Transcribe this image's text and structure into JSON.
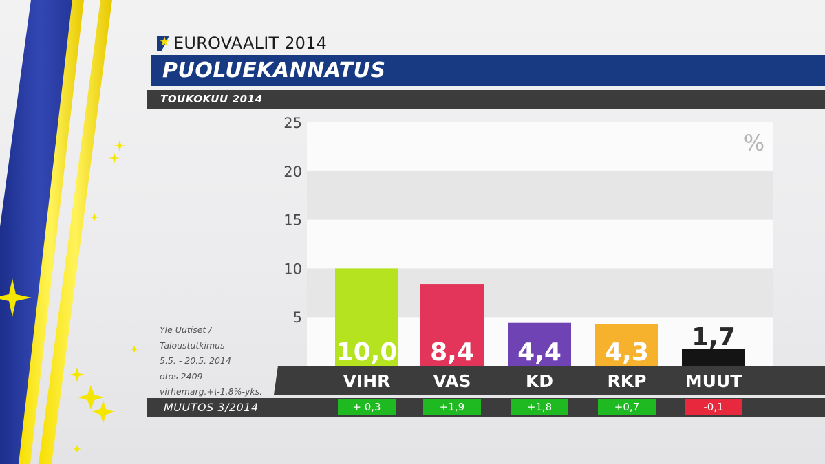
{
  "header": {
    "brand": "EUROVAALIT 2014",
    "title": "PUOLUEKANNATUS",
    "subtitle": "TOUKOKUU 2014"
  },
  "source_lines": [
    "Yle Uutiset /",
    "Taloustutkimus",
    "5.5. - 20.5. 2014",
    "otos 2409",
    "virhemarg.+\\-1,8%-yks."
  ],
  "changes": {
    "label": "MUUTOS 3/2014",
    "items": [
      {
        "party": "VIHR",
        "text": "+ 0,3",
        "value": 0.3
      },
      {
        "party": "VAS",
        "text": "+1,9",
        "value": 1.9
      },
      {
        "party": "KD",
        "text": "+1,8",
        "value": 1.8
      },
      {
        "party": "RKP",
        "text": "+0,7",
        "value": 0.7
      },
      {
        "party": "MUUT",
        "text": "-0,1",
        "value": -0.1
      }
    ]
  },
  "colors": {
    "title_bar": "#173a82",
    "dark_bar": "#3c3c3c",
    "positive_change": "#1fb921",
    "negative_change": "#e8283c"
  },
  "chart_data": {
    "type": "bar",
    "unit_label": "%",
    "categories": [
      "VIHR",
      "VAS",
      "KD",
      "RKP",
      "MUUT"
    ],
    "values": [
      10.0,
      8.4,
      4.4,
      4.3,
      1.7
    ],
    "value_labels": [
      "10,0",
      "8,4",
      "4,4",
      "4,3",
      "1,7"
    ],
    "colors": [
      "#b5e31f",
      "#e3345a",
      "#7043b5",
      "#f6b12d",
      "#141414"
    ],
    "ylim": [
      0,
      25
    ],
    "yticks": [
      5,
      10,
      15,
      20,
      25
    ],
    "grid": true
  }
}
